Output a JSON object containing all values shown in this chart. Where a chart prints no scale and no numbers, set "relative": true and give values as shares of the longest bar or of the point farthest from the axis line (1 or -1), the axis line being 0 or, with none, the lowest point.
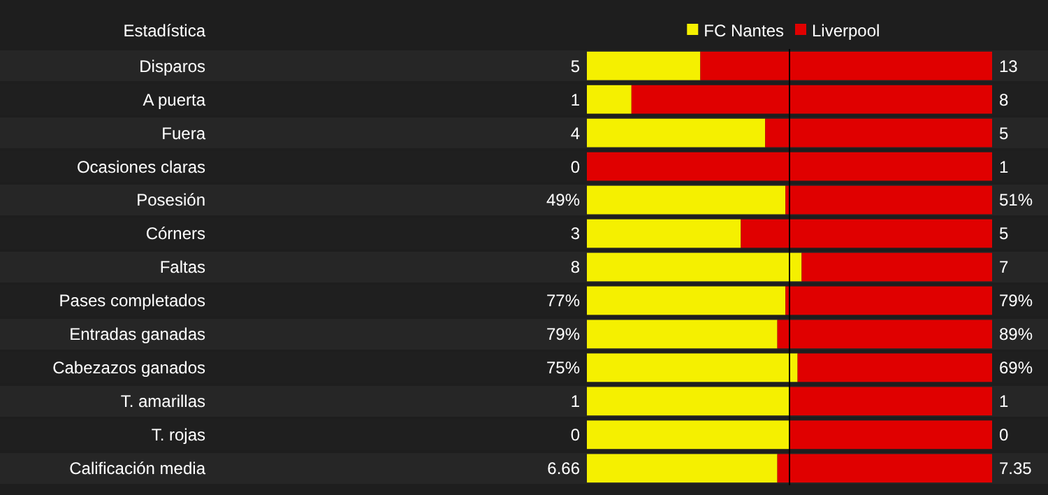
{
  "chart_data": {
    "type": "bar",
    "orientation": "horizontal",
    "stacked": true,
    "relative": true,
    "ylabel": "Estadística",
    "legend": "top",
    "categories": [
      "Disparos",
      "A puerta",
      "Fuera",
      "Ocasiones claras",
      "Posesión",
      "Córners",
      "Faltas",
      "Pases completados",
      "Entradas ganadas",
      "Cabezazos ganados",
      "T. amarillas",
      "T. rojas",
      "Calificación media"
    ],
    "series": [
      {
        "name": "FC Nantes",
        "color": "#f5f000",
        "values": [
          0.28,
          0.11,
          0.44,
          0,
          0.49,
          0.38,
          0.53,
          0.49,
          0.47,
          0.52,
          0.5,
          0.5,
          0.47
        ]
      },
      {
        "name": "Liverpool",
        "color": "#e00000",
        "values": [
          0.72,
          0.89,
          0.56,
          1,
          0.51,
          0.62,
          0.47,
          0.51,
          0.53,
          0.48,
          0.5,
          0.5,
          0.53
        ]
      }
    ],
    "annotations": [
      "5",
      "13",
      "1",
      "8",
      "4",
      "5",
      "0",
      "1",
      "49%",
      "51%",
      "3",
      "5",
      "8",
      "7",
      "77%",
      "79%",
      "79%",
      "89%",
      "75%",
      "69%",
      "1",
      "1",
      "0",
      "0",
      "6.66",
      "7.35"
    ],
    "ref_lines": [
      {
        "axis": "x",
        "value": 0.5,
        "color": "#000000"
      }
    ]
  }
}
